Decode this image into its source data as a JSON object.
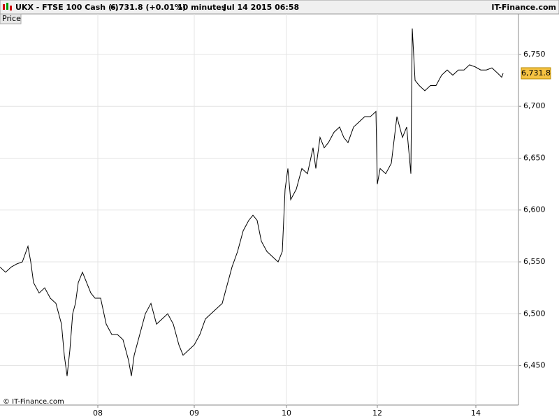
{
  "chart_data": {
    "type": "line",
    "header": {
      "symbol": "UKX - FTSE 100 Cash (-)",
      "quote": "6,731.8 (+0.01%)",
      "interval": "10 minutes",
      "date": "Jul 14 2015 06:58",
      "brand": "IT-Finance.com"
    },
    "panel_label": "Price",
    "copyright": "© IT-Finance.com",
    "last_label": "6,731.8",
    "xlim": [
      0,
      742
    ],
    "ylim": [
      6412,
      6789
    ],
    "xticks": [
      {
        "value": 140,
        "label": "08"
      },
      {
        "value": 278,
        "label": "09"
      },
      {
        "value": 410,
        "label": "10"
      },
      {
        "value": 540,
        "label": "12"
      },
      {
        "value": 681,
        "label": "14"
      }
    ],
    "yticks": [
      {
        "value": 6450,
        "label": "6,450"
      },
      {
        "value": 6500,
        "label": "6,500"
      },
      {
        "value": 6550,
        "label": "6,550"
      },
      {
        "value": 6600,
        "label": "6,600"
      },
      {
        "value": 6650,
        "label": "6,650"
      },
      {
        "value": 6700,
        "label": "6,700"
      },
      {
        "value": 6750,
        "label": "6,750"
      }
    ],
    "grid": true,
    "color": "#000000",
    "x": [
      0,
      8,
      16,
      24,
      32,
      40,
      44,
      48,
      56,
      64,
      72,
      80,
      88,
      92,
      96,
      100,
      104,
      108,
      112,
      118,
      124,
      130,
      136,
      144,
      152,
      160,
      168,
      176,
      184,
      188,
      192,
      200,
      208,
      216,
      224,
      232,
      240,
      248,
      256,
      262,
      270,
      278,
      286,
      294,
      302,
      310,
      318,
      324,
      332,
      340,
      348,
      356,
      362,
      368,
      374,
      382,
      390,
      398,
      404,
      408,
      412,
      416,
      424,
      432,
      440,
      448,
      452,
      458,
      464,
      470,
      478,
      486,
      492,
      498,
      506,
      514,
      522,
      530,
      538,
      540,
      544,
      552,
      560,
      568,
      576,
      582,
      588,
      590,
      594,
      600,
      608,
      616,
      624,
      632,
      640,
      648,
      656,
      664,
      672,
      680,
      688,
      696,
      704,
      712,
      718,
      720
    ],
    "values": [
      6545,
      6540,
      6545,
      6548,
      6550,
      6565,
      6550,
      6530,
      6520,
      6525,
      6515,
      6510,
      6490,
      6460,
      6440,
      6465,
      6500,
      6510,
      6530,
      6540,
      6530,
      6520,
      6515,
      6515,
      6490,
      6480,
      6480,
      6475,
      6455,
      6440,
      6460,
      6480,
      6500,
      6510,
      6490,
      6495,
      6500,
      6490,
      6470,
      6460,
      6465,
      6470,
      6480,
      6495,
      6500,
      6505,
      6510,
      6525,
      6545,
      6560,
      6580,
      6590,
      6595,
      6590,
      6570,
      6560,
      6555,
      6550,
      6560,
      6620,
      6640,
      6610,
      6620,
      6640,
      6635,
      6660,
      6640,
      6670,
      6660,
      6665,
      6675,
      6680,
      6670,
      6665,
      6680,
      6685,
      6690,
      6690,
      6695,
      6625,
      6640,
      6635,
      6645,
      6690,
      6670,
      6680,
      6635,
      6775,
      6725,
      6720,
      6715,
      6720,
      6720,
      6730,
      6735,
      6730,
      6735,
      6735,
      6740,
      6738,
      6735,
      6735,
      6737,
      6732,
      6728,
      6731.8
    ]
  }
}
